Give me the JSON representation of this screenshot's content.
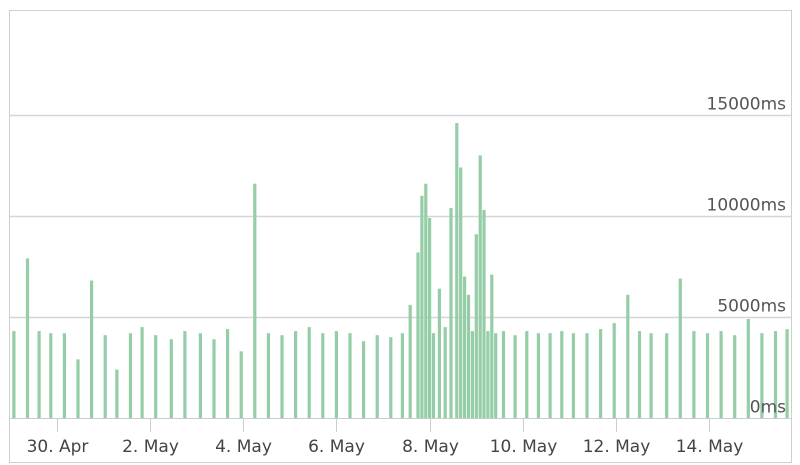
{
  "chart_data": {
    "type": "bar",
    "title": "",
    "xlabel": "",
    "ylabel": "",
    "x_range": [
      "2024-04-29T00:00",
      "2024-05-15T18:00"
    ],
    "ylim": [
      0,
      20000
    ],
    "grid": true,
    "legend": "none",
    "colors": {
      "bar": "#94cda6",
      "grid": "#d6d6d6",
      "frame": "#cfcfcf"
    },
    "y_ticks": [
      {
        "value": 0,
        "label": "0ms"
      },
      {
        "value": 5000,
        "label": "5000ms"
      },
      {
        "value": 10000,
        "label": "10000ms"
      },
      {
        "value": 15000,
        "label": "15000ms"
      }
    ],
    "x_ticks": [
      {
        "date": "2024-04-30",
        "label": "30. Apr"
      },
      {
        "date": "2024-05-02",
        "label": "2. May"
      },
      {
        "date": "2024-05-04",
        "label": "4. May"
      },
      {
        "date": "2024-05-06",
        "label": "6. May"
      },
      {
        "date": "2024-05-08",
        "label": "8. May"
      },
      {
        "date": "2024-05-10",
        "label": "10. May"
      },
      {
        "date": "2024-05-12",
        "label": "12. May"
      },
      {
        "date": "2024-05-14",
        "label": "14. May"
      }
    ],
    "series": [
      {
        "x": [
          "2024-04-29T02:00",
          "2024-04-29T09:00",
          "2024-04-29T15:00",
          "2024-04-29T21:00",
          "2024-04-30T04:00",
          "2024-04-30T11:00",
          "2024-04-30T18:00",
          "2024-05-01T01:00",
          "2024-05-01T07:00",
          "2024-05-01T14:00",
          "2024-05-01T20:00",
          "2024-05-02T03:00",
          "2024-05-02T11:00",
          "2024-05-02T18:00",
          "2024-05-03T02:00",
          "2024-05-03T09:00",
          "2024-05-03T16:00",
          "2024-05-03T23:00",
          "2024-05-04T06:00",
          "2024-05-04T13:00",
          "2024-05-04T20:00",
          "2024-05-05T03:00",
          "2024-05-05T10:00",
          "2024-05-05T17:00",
          "2024-05-06T00:00",
          "2024-05-06T07:00",
          "2024-05-06T14:00",
          "2024-05-06T21:00",
          "2024-05-07T04:00",
          "2024-05-07T10:00",
          "2024-05-07T14:00",
          "2024-05-07T18:00",
          "2024-05-07T20:00",
          "2024-05-07T22:00",
          "2024-05-08T00:00",
          "2024-05-08T02:00",
          "2024-05-08T05:00",
          "2024-05-08T08:00",
          "2024-05-08T11:00",
          "2024-05-08T14:00",
          "2024-05-08T16:00",
          "2024-05-08T18:00",
          "2024-05-08T20:00",
          "2024-05-08T22:00",
          "2024-05-09T00:00",
          "2024-05-09T02:00",
          "2024-05-09T04:00",
          "2024-05-09T06:00",
          "2024-05-09T08:00",
          "2024-05-09T10:00",
          "2024-05-09T14:00",
          "2024-05-09T20:00",
          "2024-05-10T02:00",
          "2024-05-10T08:00",
          "2024-05-10T14:00",
          "2024-05-10T20:00",
          "2024-05-11T02:00",
          "2024-05-11T09:00",
          "2024-05-11T16:00",
          "2024-05-11T23:00",
          "2024-05-12T06:00",
          "2024-05-12T12:00",
          "2024-05-12T18:00",
          "2024-05-13T02:00",
          "2024-05-13T09:00",
          "2024-05-13T16:00",
          "2024-05-13T23:00",
          "2024-05-14T06:00",
          "2024-05-14T13:00",
          "2024-05-14T20:00",
          "2024-05-15T03:00",
          "2024-05-15T10:00",
          "2024-05-15T16:00"
        ],
        "values": [
          4300,
          7900,
          4300,
          4200,
          4200,
          2900,
          6800,
          4100,
          2400,
          4200,
          4500,
          4100,
          3900,
          4300,
          4200,
          3900,
          4400,
          3300,
          11600,
          4200,
          4100,
          4300,
          4500,
          4200,
          4300,
          4200,
          3800,
          4100,
          4000,
          4200,
          5600,
          8200,
          11000,
          11600,
          9900,
          4200,
          6400,
          4500,
          10400,
          14600,
          12400,
          7000,
          6100,
          4300,
          9100,
          13000,
          10300,
          4300,
          7100,
          4200,
          4300,
          4100,
          4300,
          4200,
          4200,
          4300,
          4200,
          4200,
          4400,
          4700,
          6100,
          4300,
          4200,
          4200,
          6900,
          4300,
          4200,
          4300,
          4100,
          4900,
          4200,
          4300,
          4400
        ]
      }
    ]
  }
}
